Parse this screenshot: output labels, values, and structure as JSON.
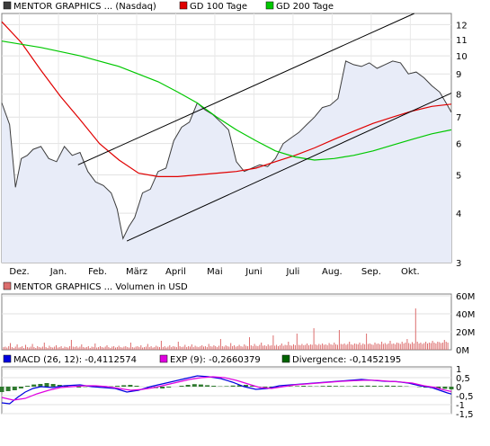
{
  "chart_data": [
    {
      "type": "line",
      "legend": [
        {
          "label": "MENTOR GRAPHICS ... (Nasdaq)",
          "color": "#3c3c3c"
        },
        {
          "label": "GD 100 Tage",
          "color": "#e00000"
        },
        {
          "label": "GD 200 Tage",
          "color": "#00c800"
        }
      ],
      "y_scale": "log",
      "ylim": [
        3,
        12.8
      ],
      "y_ticks": [
        "3",
        "4",
        "5",
        "6",
        "7",
        "8",
        "9",
        "10",
        "11",
        "12"
      ],
      "x_tick_labels": [
        "Dez.",
        "Jan.",
        "Feb.",
        "März",
        "April",
        "Mai",
        "Juni",
        "Juli",
        "Aug.",
        "Sep.",
        "Okt."
      ],
      "x_range_months": [
        0,
        11.5
      ],
      "series": [
        {
          "name": "MENTOR GRAPHICS ... (Nasdaq)",
          "color": "#3c3c3c",
          "x": [
            0,
            0.2,
            0.35,
            0.5,
            0.65,
            0.8,
            1.0,
            1.2,
            1.4,
            1.6,
            1.8,
            2.0,
            2.2,
            2.4,
            2.6,
            2.8,
            2.95,
            3.1,
            3.25,
            3.4,
            3.6,
            3.8,
            4.0,
            4.2,
            4.4,
            4.6,
            4.8,
            5.0,
            5.2,
            5.4,
            5.6,
            5.8,
            6.0,
            6.2,
            6.4,
            6.6,
            6.8,
            7.0,
            7.2,
            7.4,
            7.6,
            7.8,
            8.0,
            8.2,
            8.4,
            8.6,
            8.8,
            9.0,
            9.2,
            9.4,
            9.6,
            9.8,
            10.0,
            10.2,
            10.4,
            10.6,
            10.8,
            11.0,
            11.2,
            11.4,
            11.5
          ],
          "y": [
            7.6,
            6.7,
            4.65,
            5.5,
            5.6,
            5.8,
            5.9,
            5.5,
            5.4,
            5.9,
            5.6,
            5.7,
            5.1,
            4.8,
            4.7,
            4.5,
            4.1,
            3.45,
            3.7,
            3.9,
            4.5,
            4.6,
            5.1,
            5.2,
            6.1,
            6.6,
            6.8,
            7.6,
            7.3,
            7.1,
            6.8,
            6.5,
            5.4,
            5.1,
            5.2,
            5.3,
            5.25,
            5.5,
            6.0,
            6.2,
            6.4,
            6.7,
            7.0,
            7.4,
            7.5,
            7.8,
            9.7,
            9.5,
            9.4,
            9.6,
            9.3,
            9.5,
            9.7,
            9.6,
            9.0,
            9.1,
            8.8,
            8.4,
            8.1,
            7.5,
            7.2
          ]
        },
        {
          "name": "GD 100 Tage",
          "color": "#e00000",
          "x": [
            0,
            0.5,
            1.0,
            1.5,
            2.0,
            2.5,
            3.0,
            3.5,
            4.0,
            4.5,
            5.0,
            5.5,
            6.0,
            6.5,
            7.0,
            7.5,
            8.0,
            8.5,
            9.0,
            9.5,
            10.0,
            10.5,
            11.0,
            11.5
          ],
          "y": [
            12.2,
            10.8,
            9.2,
            7.9,
            6.9,
            6.0,
            5.45,
            5.05,
            4.95,
            4.95,
            5.0,
            5.05,
            5.1,
            5.2,
            5.4,
            5.6,
            5.85,
            6.15,
            6.45,
            6.75,
            7.0,
            7.25,
            7.45,
            7.55
          ]
        },
        {
          "name": "GD 200 Tage",
          "color": "#00c800",
          "x": [
            0,
            1.0,
            2.0,
            3.0,
            4.0,
            4.5,
            5.0,
            5.5,
            6.0,
            6.5,
            7.0,
            7.5,
            8.0,
            8.5,
            9.0,
            9.5,
            10.0,
            10.5,
            11.0,
            11.5
          ],
          "y": [
            10.9,
            10.5,
            10.0,
            9.4,
            8.6,
            8.1,
            7.6,
            7.0,
            6.5,
            6.1,
            5.75,
            5.55,
            5.45,
            5.5,
            5.6,
            5.75,
            5.95,
            6.15,
            6.35,
            6.5
          ]
        }
      ],
      "trendlines": [
        {
          "x": [
            1.95,
            10.55
          ],
          "y": [
            5.3,
            12.8
          ]
        },
        {
          "x": [
            3.2,
            11.5
          ],
          "y": [
            3.4,
            8.05
          ]
        }
      ]
    },
    {
      "type": "bar",
      "legend": [
        {
          "label": "MENTOR GRAPHICS ... Volumen in USD",
          "color": "#dc6e6e"
        }
      ],
      "y_ticks": [
        "0M",
        "20M",
        "40M",
        "60M"
      ],
      "ylim": [
        0,
        62
      ],
      "unit": "M USD",
      "values": [
        3,
        3.5,
        2.5,
        4,
        7.5,
        3,
        2,
        3.5,
        6,
        2.5,
        3,
        4,
        2,
        5.5,
        3,
        2.5,
        3.5,
        6.5,
        3,
        2,
        4,
        3,
        2.5,
        3.5,
        8,
        3,
        2,
        4.5,
        3,
        2.5,
        3.5,
        5,
        2.5,
        3,
        4,
        2,
        3.5,
        3,
        2.5,
        4,
        11,
        3.5,
        3,
        4,
        2.5,
        3.5,
        6,
        3,
        2.5,
        3,
        4,
        2,
        3.5,
        3,
        7,
        2.5,
        3,
        4,
        3,
        2.5,
        3.5,
        5,
        3,
        2,
        3.5,
        4,
        2.5,
        3,
        4.5,
        3,
        2.5,
        3.5,
        4,
        3,
        2.5,
        8,
        3,
        2.5,
        3.5,
        4,
        3,
        5,
        2.5,
        3,
        3.5,
        6.5,
        3,
        4,
        2.5,
        3,
        4.5,
        3.5,
        3,
        10,
        3,
        4,
        2.5,
        3.5,
        5,
        3,
        4,
        3.5,
        3,
        9,
        4,
        3,
        3.5,
        5.5,
        3,
        4,
        3.5,
        6,
        3,
        4.5,
        3.5,
        3,
        4,
        5,
        3.5,
        4,
        3,
        6.5,
        4,
        3.5,
        5,
        4,
        3,
        4.5,
        12,
        4,
        3.5,
        5,
        4,
        3.5,
        7.5,
        4,
        5,
        3.5,
        4,
        5.5,
        4,
        3.5,
        6,
        4.5,
        4,
        14,
        5,
        4,
        6.5,
        4.5,
        4,
        5.5,
        8,
        4.5,
        5,
        4,
        6,
        4.5,
        5,
        16,
        4.5,
        5.5,
        4,
        5,
        7,
        4.5,
        5.5,
        5,
        9,
        5,
        4.5,
        6,
        5,
        18,
        5.5,
        5,
        6.5,
        5,
        5.5,
        7,
        5,
        6,
        5.5,
        24,
        6,
        5,
        6.5,
        5.5,
        7,
        5.5,
        6,
        5,
        7.5,
        6,
        5.5,
        8,
        6,
        5.5,
        22,
        6.5,
        6,
        7,
        5.5,
        6.5,
        9,
        6,
        5.5,
        7,
        6.5,
        6,
        8,
        5.5,
        7,
        6,
        18,
        6.5,
        7,
        6,
        5.5,
        8,
        6.5,
        7,
        6,
        9,
        6.5,
        7.5,
        6,
        7,
        10,
        6.5,
        7,
        6,
        8,
        7.5,
        6.5,
        9,
        7,
        8,
        12,
        7.5,
        6.5,
        8.5,
        7,
        46,
        9,
        7,
        8,
        6.5,
        7.5,
        9,
        7,
        8,
        7.5,
        10,
        8,
        7,
        9,
        8.5,
        7.5,
        8,
        11,
        9,
        8
      ]
    },
    {
      "type": "line",
      "legend": [
        {
          "label": "MACD (26, 12): -0,4112574",
          "color": "#0000e0"
        },
        {
          "label": "EXP (9): -0,2660379",
          "color": "#e000e0"
        },
        {
          "label": "Divergence: -0,1452195",
          "color": "#006400"
        }
      ],
      "y_ticks": [
        "1",
        "0,5",
        "0",
        "-0,5",
        "-1",
        "-1,5"
      ],
      "ylim": [
        -1.5,
        1.1
      ],
      "series": [
        {
          "name": "MACD (26, 12)",
          "color": "#0000e0",
          "x": [
            0,
            0.2,
            0.4,
            0.6,
            0.8,
            1.0,
            1.3,
            1.6,
            2.0,
            2.3,
            2.6,
            2.9,
            3.2,
            3.5,
            3.8,
            4.1,
            4.4,
            4.7,
            5.0,
            5.3,
            5.6,
            5.9,
            6.2,
            6.5,
            6.8,
            7.1,
            7.4,
            7.7,
            8.0,
            8.3,
            8.6,
            8.9,
            9.2,
            9.5,
            9.8,
            10.1,
            10.4,
            10.7,
            11.0,
            11.2,
            11.4,
            11.5
          ],
          "y": [
            -0.9,
            -0.95,
            -0.6,
            -0.3,
            -0.1,
            0.0,
            -0.05,
            0.05,
            0.1,
            0.0,
            -0.05,
            -0.1,
            -0.3,
            -0.2,
            0.0,
            0.15,
            0.3,
            0.45,
            0.6,
            0.55,
            0.45,
            0.25,
            0.0,
            -0.15,
            -0.1,
            0.05,
            0.1,
            0.15,
            0.2,
            0.25,
            0.3,
            0.35,
            0.4,
            0.35,
            0.3,
            0.28,
            0.2,
            0.05,
            -0.05,
            -0.2,
            -0.35,
            -0.41
          ]
        },
        {
          "name": "EXP (9)",
          "color": "#e000e0",
          "x": [
            0,
            0.3,
            0.6,
            0.9,
            1.2,
            1.5,
            1.8,
            2.1,
            2.4,
            2.7,
            3.0,
            3.3,
            3.6,
            3.9,
            4.2,
            4.5,
            4.8,
            5.1,
            5.4,
            5.7,
            6.0,
            6.3,
            6.6,
            6.9,
            7.2,
            7.5,
            7.8,
            8.1,
            8.4,
            8.7,
            9.0,
            9.3,
            9.6,
            9.9,
            10.2,
            10.5,
            10.8,
            11.1,
            11.3,
            11.5
          ],
          "y": [
            -0.6,
            -0.75,
            -0.65,
            -0.4,
            -0.2,
            -0.05,
            0.0,
            0.05,
            0.05,
            0.0,
            -0.1,
            -0.2,
            -0.15,
            -0.05,
            0.1,
            0.25,
            0.4,
            0.5,
            0.55,
            0.5,
            0.35,
            0.15,
            -0.05,
            -0.1,
            0.0,
            0.1,
            0.15,
            0.2,
            0.25,
            0.3,
            0.33,
            0.36,
            0.35,
            0.3,
            0.26,
            0.2,
            0.05,
            -0.05,
            -0.18,
            -0.27
          ]
        }
      ],
      "divergence_x_range": [
        0,
        11.5
      ],
      "divergence": [
        -0.3,
        -0.25,
        -0.2,
        -0.1,
        0.05,
        0.12,
        0.15,
        0.2,
        0.15,
        0.1,
        0.05,
        0.0,
        -0.05,
        -0.02,
        0.02,
        0.05,
        0.03,
        0.02,
        0.05,
        0.08,
        0.1,
        0.05,
        0.0,
        -0.03,
        -0.08,
        -0.1,
        -0.05,
        0.0,
        0.05,
        0.1,
        0.14,
        0.12,
        0.08,
        0.05,
        0.02,
        0.03,
        0.06,
        0.08,
        0.1,
        0.05,
        -0.02,
        -0.05,
        -0.08,
        -0.05,
        0.0,
        0.02,
        0.03,
        0.05,
        0.03,
        0.02,
        0.04,
        0.05,
        0.04,
        0.03,
        0.02,
        0.04,
        0.05,
        0.06,
        0.05,
        0.04,
        0.06,
        0.05,
        0.04,
        0.02,
        0.0,
        -0.02,
        -0.05,
        -0.08,
        -0.1,
        -0.12,
        -0.15
      ]
    }
  ]
}
